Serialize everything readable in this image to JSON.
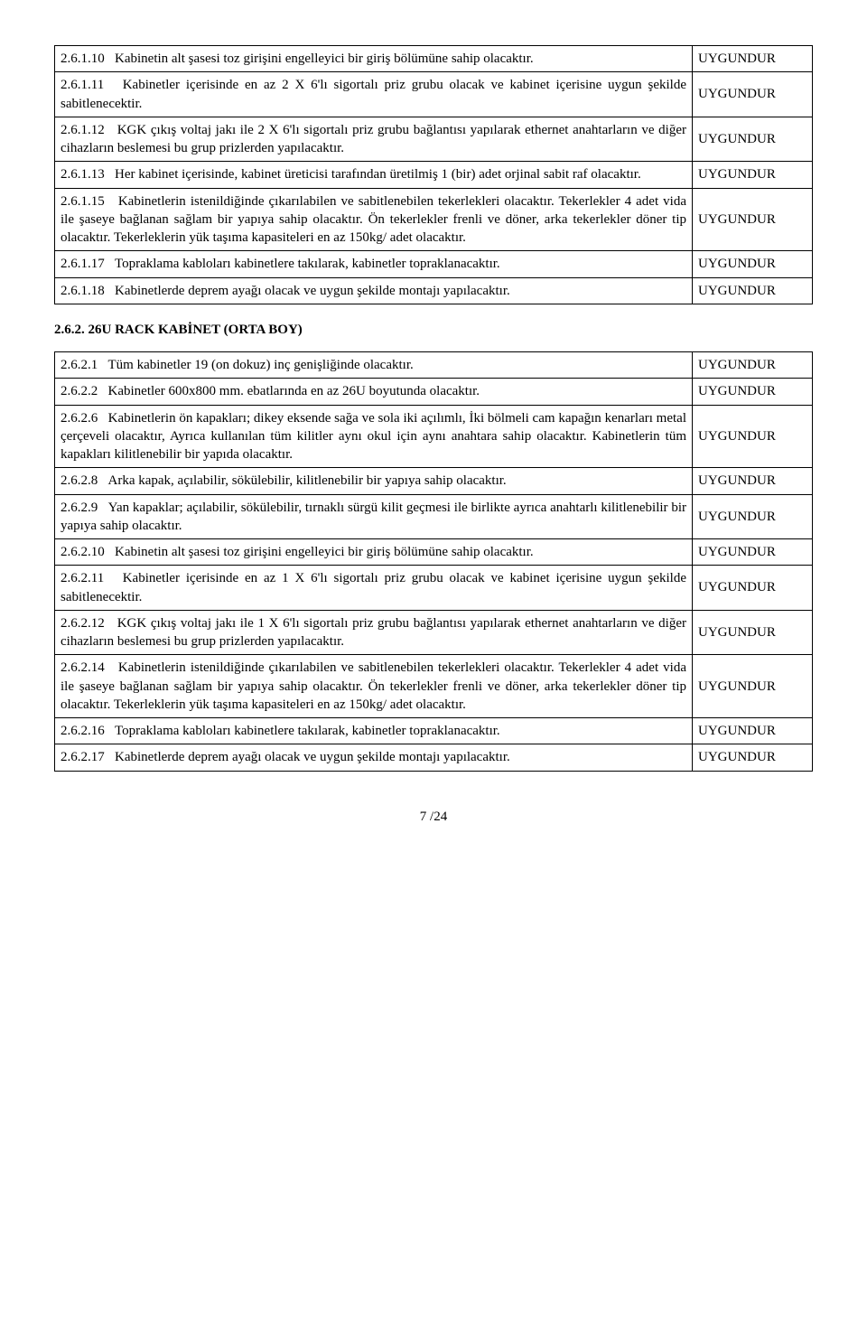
{
  "table1": {
    "rows": [
      {
        "num": "2.6.1.10",
        "text": "Kabinetin alt şasesi toz girişini engelleyici bir giriş bölümüne sahip olacaktır.",
        "status": "UYGUNDUR"
      },
      {
        "num": "2.6.1.11",
        "text": "Kabinetler içerisinde en az 2 X 6'lı sigortalı priz grubu olacak ve kabinet içerisine uygun şekilde sabitlenecektir.",
        "status": "UYGUNDUR"
      },
      {
        "num": "2.6.1.12",
        "text": "KGK çıkış voltaj jakı ile 2 X 6'lı sigortalı priz grubu bağlantısı yapılarak ethernet anahtarların ve diğer cihazların beslemesi bu grup prizlerden yapılacaktır.",
        "status": "UYGUNDUR"
      },
      {
        "num": "2.6.1.13",
        "text": "Her kabinet içerisinde, kabinet üreticisi tarafından üretilmiş 1 (bir) adet orjinal sabit raf olacaktır.",
        "status": "UYGUNDUR"
      },
      {
        "num": "2.6.1.15",
        "text": "Kabinetlerin istenildiğinde çıkarılabilen ve sabitlenebilen tekerlekleri olacaktır. Tekerlekler 4 adet vida ile şaseye bağlanan sağlam bir yapıya sahip olacaktır. Ön tekerlekler frenli ve döner, arka tekerlekler döner tip olacaktır. Tekerleklerin yük taşıma kapasiteleri en az 150kg/ adet olacaktır.",
        "status": "UYGUNDUR"
      },
      {
        "num": "2.6.1.17",
        "text": "Topraklama kabloları kabinetlere takılarak, kabinetler topraklanacaktır.",
        "status": "UYGUNDUR"
      },
      {
        "num": "2.6.1.18",
        "text": "Kabinetlerde deprem ayağı olacak ve uygun şekilde montajı yapılacaktır.",
        "status": "UYGUNDUR"
      }
    ]
  },
  "section_heading": "2.6.2. 26U RACK KABİNET (ORTA BOY)",
  "table2": {
    "rows": [
      {
        "num": "2.6.2.1",
        "text": "Tüm kabinetler 19 (on dokuz) inç genişliğinde olacaktır.",
        "status": "UYGUNDUR"
      },
      {
        "num": "2.6.2.2",
        "text": "Kabinetler 600x800 mm. ebatlarında en az 26U boyutunda olacaktır.",
        "status": "UYGUNDUR"
      },
      {
        "num": "2.6.2.6",
        "text": "Kabinetlerin ön kapakları; dikey eksende sağa ve sola iki açılımlı, İki bölmeli cam kapağın kenarları metal çerçeveli olacaktır, Ayrıca kullanılan tüm kilitler aynı okul için aynı anahtara sahip olacaktır. Kabinetlerin tüm kapakları kilitlenebilir bir yapıda olacaktır.",
        "status": "UYGUNDUR"
      },
      {
        "num": "2.6.2.8",
        "text": "Arka kapak, açılabilir, sökülebilir, kilitlenebilir bir yapıya sahip olacaktır.",
        "status": "UYGUNDUR"
      },
      {
        "num": "2.6.2.9",
        "text": "Yan kapaklar; açılabilir, sökülebilir, tırnaklı sürgü kilit geçmesi ile birlikte ayrıca anahtarlı kilitlenebilir bir yapıya sahip olacaktır.",
        "status": "UYGUNDUR"
      },
      {
        "num": "2.6.2.10",
        "text": "Kabinetin alt şasesi toz girişini engelleyici bir giriş bölümüne sahip olacaktır.",
        "status": "UYGUNDUR"
      },
      {
        "num": "2.6.2.11",
        "text": "Kabinetler içerisinde en az 1 X 6'lı sigortalı priz grubu olacak ve kabinet içerisine uygun şekilde sabitlenecektir.",
        "status": "UYGUNDUR"
      },
      {
        "num": "2.6.2.12",
        "text": "KGK çıkış voltaj jakı ile 1 X 6'lı sigortalı priz grubu bağlantısı yapılarak ethernet anahtarların ve diğer cihazların beslemesi bu grup prizlerden yapılacaktır.",
        "status": "UYGUNDUR"
      },
      {
        "num": "2.6.2.14",
        "text": "Kabinetlerin istenildiğinde çıkarılabilen ve sabitlenebilen tekerlekleri olacaktır. Tekerlekler 4 adet vida ile şaseye bağlanan sağlam bir yapıya sahip olacaktır. Ön tekerlekler frenli ve döner, arka tekerlekler döner tip olacaktır. Tekerleklerin yük taşıma kapasiteleri en az 150kg/ adet olacaktır.",
        "status": "UYGUNDUR"
      },
      {
        "num": "2.6.2.16",
        "text": "Topraklama kabloları kabinetlere takılarak, kabinetler topraklanacaktır.",
        "status": "UYGUNDUR"
      },
      {
        "num": "2.6.2.17",
        "text": "Kabinetlerde deprem ayağı olacak ve uygun şekilde montajı yapılacaktır.",
        "status": "UYGUNDUR"
      }
    ]
  },
  "page_footer": "7 /24"
}
